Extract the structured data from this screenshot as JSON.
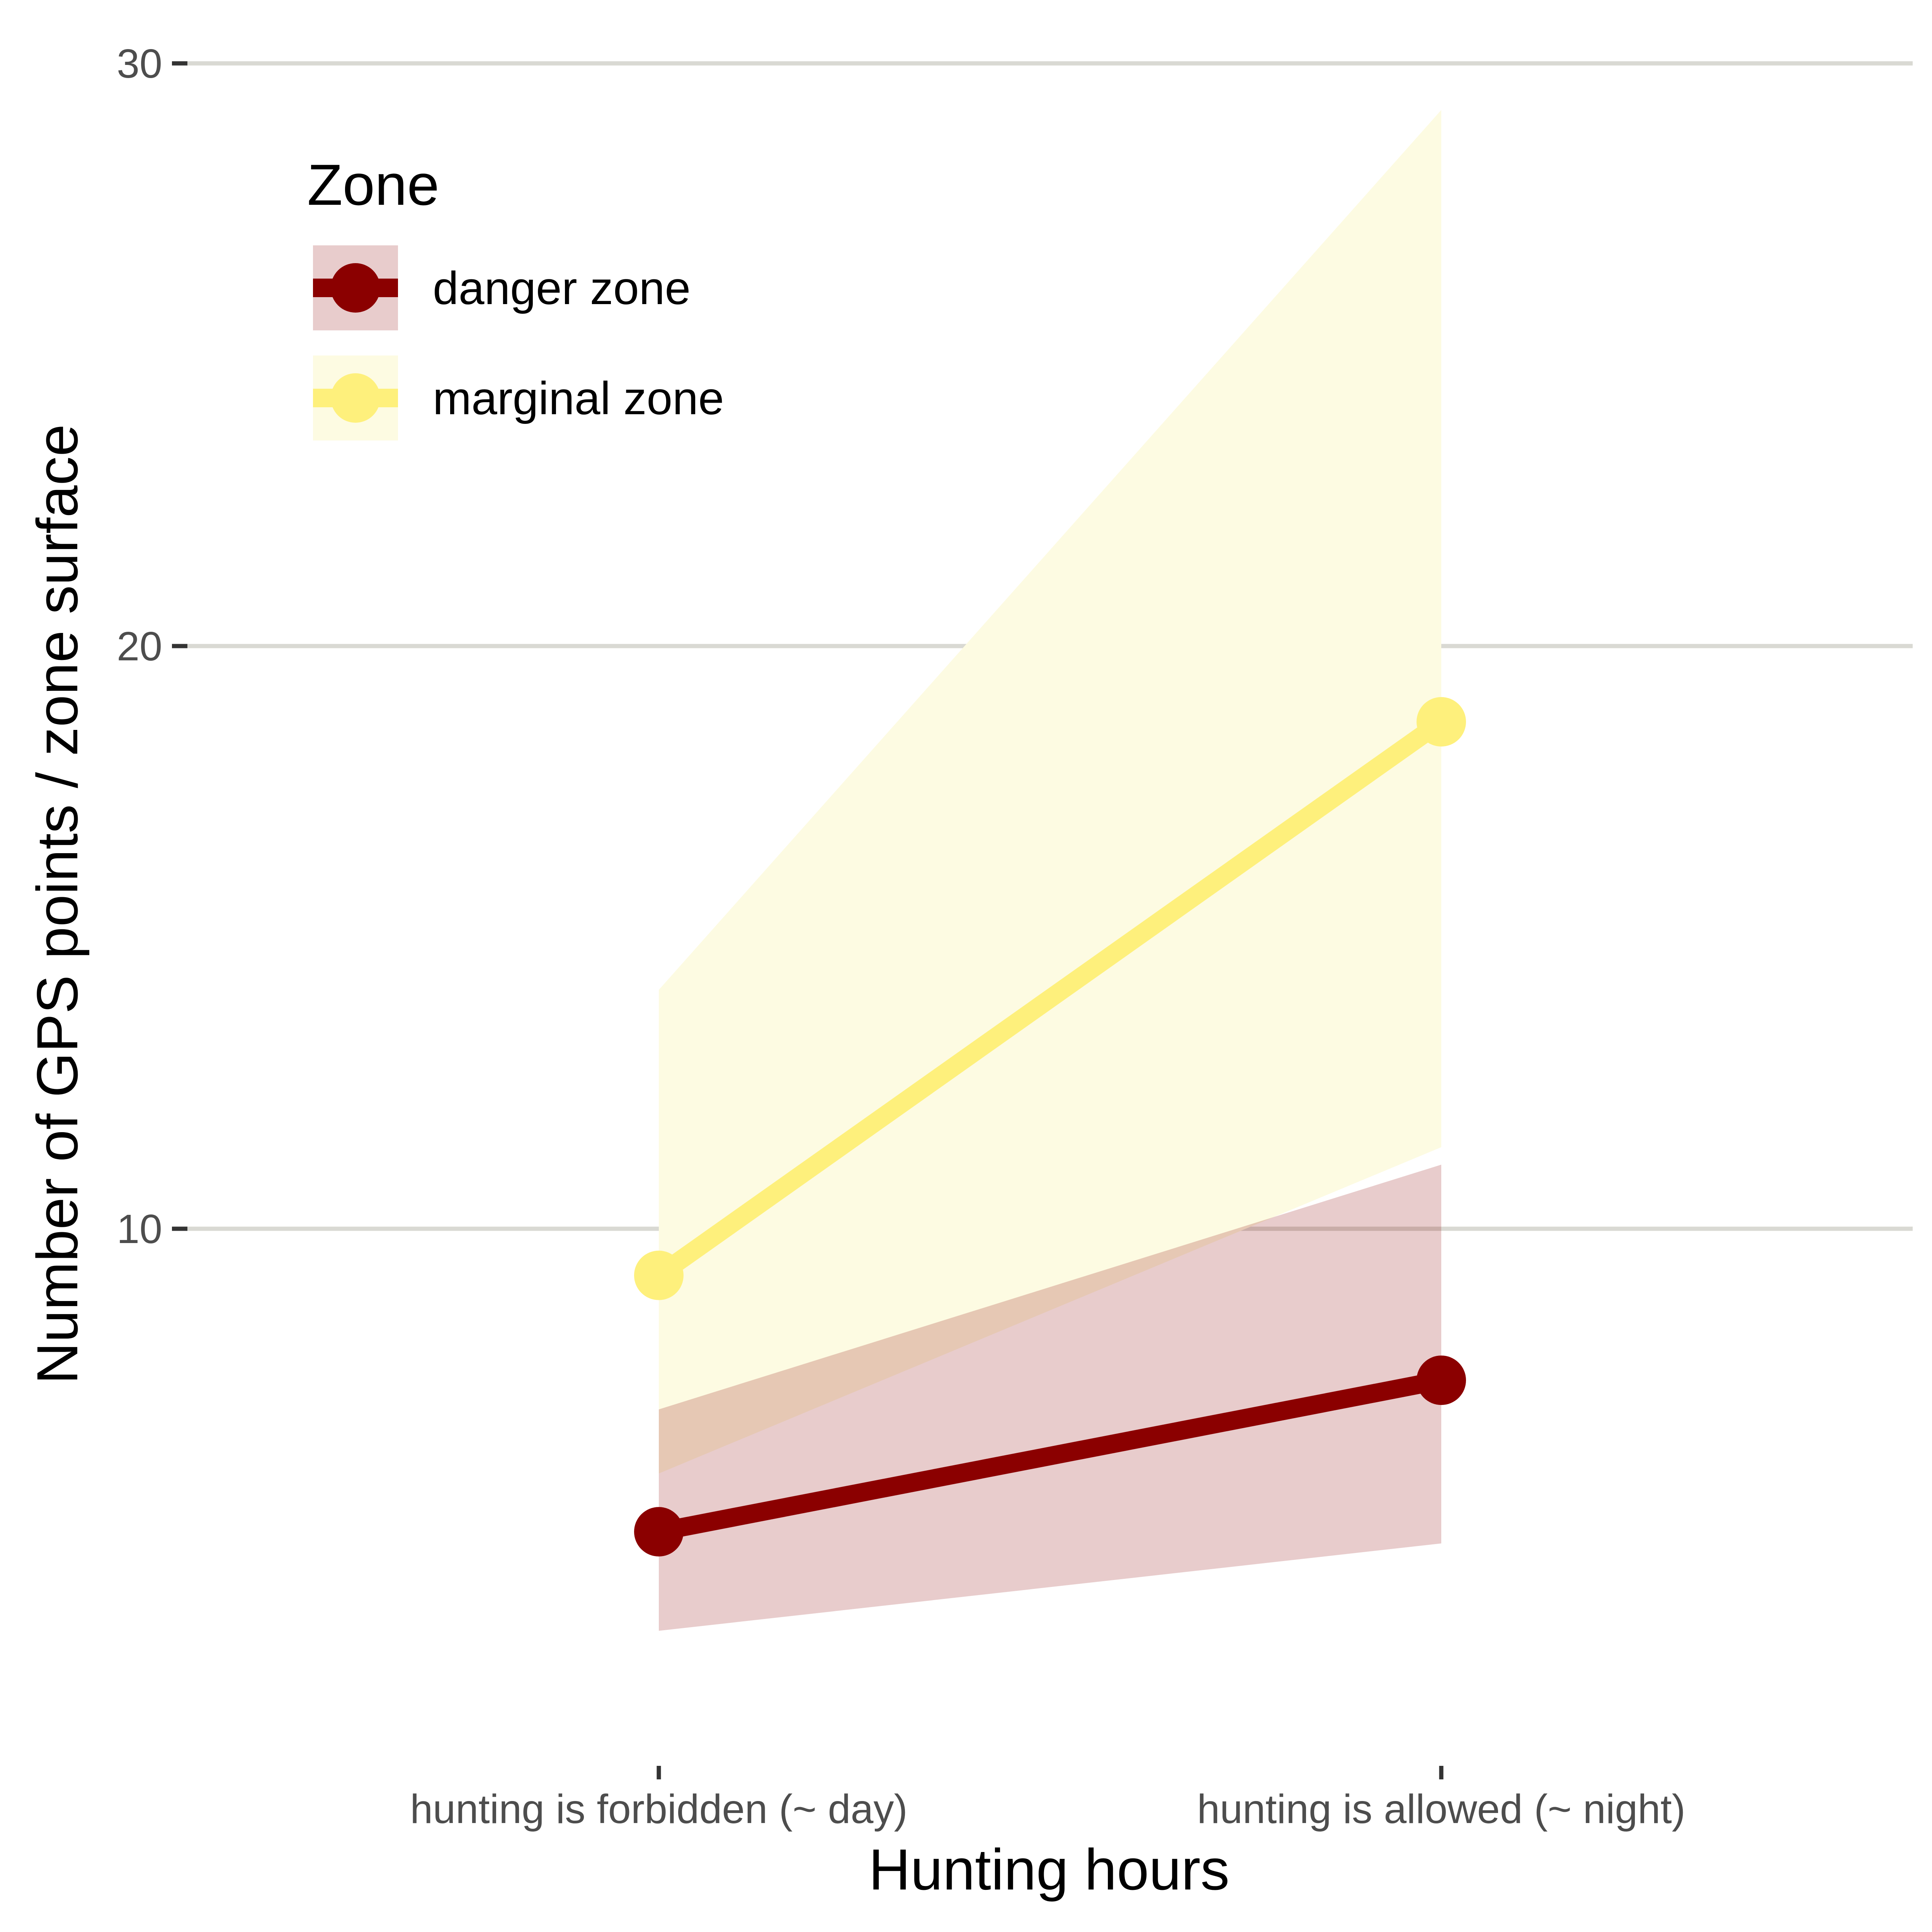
{
  "chart_data": {
    "type": "line",
    "title": "",
    "xlabel": "Hunting hours",
    "ylabel": "Number of GPS points / zone surface",
    "categories": [
      "hunting is forbidden (~ day)",
      "hunting is allowed (~ night)"
    ],
    "ylim": [
      0,
      30
    ],
    "yticks": [
      10,
      20,
      30
    ],
    "grid": "horizontal major",
    "legend": {
      "title": "Zone",
      "position": "top-left"
    },
    "series": [
      {
        "name": "danger zone",
        "values": [
          4.8,
          7.4
        ],
        "ribbon_low": [
          3.1,
          4.6
        ],
        "ribbon_high": [
          6.9,
          11.1
        ],
        "color": "#8b0000",
        "ribbon_color": "#e6caca"
      },
      {
        "name": "marginal zone",
        "values": [
          9.2,
          18.7
        ],
        "ribbon_low": [
          5.8,
          11.4
        ],
        "ribbon_high": [
          14.1,
          29.2
        ],
        "color": "#fef07c",
        "ribbon_color": "#fdfbe2"
      }
    ]
  }
}
